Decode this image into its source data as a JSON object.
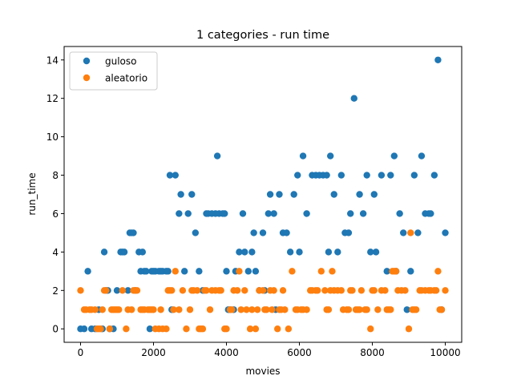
{
  "chart_data": {
    "type": "scatter",
    "title": "1 categories - run time",
    "xlabel": "movies",
    "ylabel": "run_time",
    "xlim": [
      -450,
      10450
    ],
    "ylim": [
      -0.7,
      14.7
    ],
    "xticks": [
      0,
      2000,
      4000,
      6000,
      8000,
      10000
    ],
    "yticks": [
      0,
      2,
      4,
      6,
      8,
      10,
      12,
      14
    ],
    "grid": false,
    "legend_position": "top-left",
    "series": [
      {
        "name": "guloso",
        "color": "#1f77b4",
        "points": [
          [
            0,
            0
          ],
          [
            100,
            0
          ],
          [
            200,
            3
          ],
          [
            300,
            0
          ],
          [
            400,
            0
          ],
          [
            500,
            1
          ],
          [
            600,
            0
          ],
          [
            650,
            4
          ],
          [
            700,
            2
          ],
          [
            750,
            2
          ],
          [
            800,
            0
          ],
          [
            900,
            0
          ],
          [
            1000,
            2
          ],
          [
            1100,
            4
          ],
          [
            1150,
            4
          ],
          [
            1200,
            4
          ],
          [
            1300,
            2
          ],
          [
            1350,
            5
          ],
          [
            1400,
            5
          ],
          [
            1450,
            5
          ],
          [
            1500,
            2
          ],
          [
            1600,
            4
          ],
          [
            1650,
            3
          ],
          [
            1700,
            4
          ],
          [
            1750,
            3
          ],
          [
            1800,
            3
          ],
          [
            1900,
            0
          ],
          [
            1950,
            3
          ],
          [
            2000,
            3
          ],
          [
            2050,
            3
          ],
          [
            2150,
            3
          ],
          [
            2200,
            3
          ],
          [
            2250,
            3
          ],
          [
            2350,
            3
          ],
          [
            2400,
            3
          ],
          [
            2450,
            8
          ],
          [
            2500,
            1
          ],
          [
            2600,
            8
          ],
          [
            2700,
            6
          ],
          [
            2750,
            7
          ],
          [
            2850,
            3
          ],
          [
            2950,
            6
          ],
          [
            3050,
            7
          ],
          [
            3150,
            5
          ],
          [
            3250,
            3
          ],
          [
            3350,
            2
          ],
          [
            3450,
            6
          ],
          [
            3500,
            6
          ],
          [
            3600,
            6
          ],
          [
            3700,
            6
          ],
          [
            3750,
            9
          ],
          [
            3800,
            6
          ],
          [
            3900,
            6
          ],
          [
            3950,
            6
          ],
          [
            4000,
            3
          ],
          [
            4050,
            1
          ],
          [
            4100,
            1
          ],
          [
            4200,
            1
          ],
          [
            4250,
            3
          ],
          [
            4350,
            4
          ],
          [
            4450,
            6
          ],
          [
            4500,
            4
          ],
          [
            4600,
            3
          ],
          [
            4700,
            4
          ],
          [
            4750,
            5
          ],
          [
            4800,
            3
          ],
          [
            4900,
            2
          ],
          [
            5000,
            5
          ],
          [
            5050,
            2
          ],
          [
            5150,
            6
          ],
          [
            5200,
            7
          ],
          [
            5300,
            6
          ],
          [
            5350,
            1
          ],
          [
            5450,
            7
          ],
          [
            5550,
            5
          ],
          [
            5650,
            5
          ],
          [
            5750,
            4
          ],
          [
            5850,
            7
          ],
          [
            5950,
            8
          ],
          [
            6000,
            4
          ],
          [
            6100,
            9
          ],
          [
            6200,
            6
          ],
          [
            6350,
            8
          ],
          [
            6450,
            8
          ],
          [
            6550,
            8
          ],
          [
            6650,
            8
          ],
          [
            6750,
            8
          ],
          [
            6800,
            4
          ],
          [
            6850,
            9
          ],
          [
            6950,
            7
          ],
          [
            7050,
            4
          ],
          [
            7150,
            8
          ],
          [
            7250,
            5
          ],
          [
            7350,
            5
          ],
          [
            7400,
            6
          ],
          [
            7500,
            12
          ],
          [
            7650,
            7
          ],
          [
            7750,
            6
          ],
          [
            7850,
            8
          ],
          [
            7950,
            4
          ],
          [
            8050,
            7
          ],
          [
            8100,
            4
          ],
          [
            8250,
            8
          ],
          [
            8400,
            3
          ],
          [
            8500,
            8
          ],
          [
            8600,
            9
          ],
          [
            8650,
            3
          ],
          [
            8750,
            6
          ],
          [
            8850,
            5
          ],
          [
            8950,
            1
          ],
          [
            9050,
            3
          ],
          [
            9150,
            8
          ],
          [
            9250,
            5
          ],
          [
            9350,
            9
          ],
          [
            9450,
            6
          ],
          [
            9550,
            6
          ],
          [
            9600,
            6
          ],
          [
            9700,
            8
          ],
          [
            9800,
            14
          ],
          [
            9900,
            1
          ],
          [
            10000,
            5
          ]
        ]
      },
      {
        "name": "aleatorio",
        "color": "#ff7f0e",
        "points": [
          [
            0,
            2
          ],
          [
            100,
            1
          ],
          [
            150,
            1
          ],
          [
            250,
            1
          ],
          [
            300,
            1
          ],
          [
            400,
            1
          ],
          [
            450,
            0
          ],
          [
            500,
            0
          ],
          [
            550,
            0
          ],
          [
            600,
            1
          ],
          [
            650,
            2
          ],
          [
            700,
            2
          ],
          [
            800,
            0
          ],
          [
            850,
            1
          ],
          [
            900,
            1
          ],
          [
            950,
            1
          ],
          [
            1000,
            1
          ],
          [
            1050,
            1
          ],
          [
            1150,
            2
          ],
          [
            1250,
            0
          ],
          [
            1300,
            1
          ],
          [
            1400,
            1
          ],
          [
            1450,
            2
          ],
          [
            1500,
            2
          ],
          [
            1550,
            2
          ],
          [
            1650,
            1
          ],
          [
            1700,
            1
          ],
          [
            1750,
            1
          ],
          [
            1850,
            1
          ],
          [
            1900,
            1
          ],
          [
            1950,
            1
          ],
          [
            2000,
            1
          ],
          [
            2050,
            0
          ],
          [
            2150,
            0
          ],
          [
            2200,
            1
          ],
          [
            2250,
            0
          ],
          [
            2350,
            0
          ],
          [
            2400,
            2
          ],
          [
            2450,
            2
          ],
          [
            2500,
            2
          ],
          [
            2550,
            1
          ],
          [
            2600,
            3
          ],
          [
            2700,
            1
          ],
          [
            2800,
            2
          ],
          [
            2900,
            0
          ],
          [
            3000,
            1
          ],
          [
            3050,
            2
          ],
          [
            3100,
            2
          ],
          [
            3200,
            2
          ],
          [
            3250,
            0
          ],
          [
            3300,
            0
          ],
          [
            3350,
            0
          ],
          [
            3400,
            2
          ],
          [
            3450,
            2
          ],
          [
            3550,
            1
          ],
          [
            3600,
            2
          ],
          [
            3700,
            2
          ],
          [
            3800,
            2
          ],
          [
            3850,
            2
          ],
          [
            3950,
            0
          ],
          [
            4000,
            0
          ],
          [
            4100,
            1
          ],
          [
            4150,
            1
          ],
          [
            4200,
            2
          ],
          [
            4300,
            2
          ],
          [
            4350,
            3
          ],
          [
            4400,
            1
          ],
          [
            4500,
            2
          ],
          [
            4550,
            1
          ],
          [
            4650,
            0
          ],
          [
            4700,
            1
          ],
          [
            4800,
            0
          ],
          [
            4850,
            1
          ],
          [
            4900,
            2
          ],
          [
            5000,
            2
          ],
          [
            5050,
            1
          ],
          [
            5100,
            1
          ],
          [
            5200,
            2
          ],
          [
            5250,
            1
          ],
          [
            5300,
            2
          ],
          [
            5400,
            0
          ],
          [
            5450,
            1
          ],
          [
            5500,
            1
          ],
          [
            5550,
            2
          ],
          [
            5600,
            1
          ],
          [
            5700,
            0
          ],
          [
            5800,
            3
          ],
          [
            5900,
            1
          ],
          [
            5950,
            1
          ],
          [
            6050,
            1
          ],
          [
            6100,
            1
          ],
          [
            6200,
            1
          ],
          [
            6300,
            2
          ],
          [
            6350,
            2
          ],
          [
            6450,
            2
          ],
          [
            6500,
            2
          ],
          [
            6600,
            3
          ],
          [
            6700,
            2
          ],
          [
            6750,
            1
          ],
          [
            6800,
            1
          ],
          [
            6850,
            2
          ],
          [
            6900,
            3
          ],
          [
            6950,
            2
          ],
          [
            7050,
            2
          ],
          [
            7150,
            2
          ],
          [
            7200,
            1
          ],
          [
            7300,
            1
          ],
          [
            7350,
            1
          ],
          [
            7400,
            2
          ],
          [
            7450,
            2
          ],
          [
            7550,
            1
          ],
          [
            7600,
            1
          ],
          [
            7650,
            1
          ],
          [
            7700,
            2
          ],
          [
            7800,
            1
          ],
          [
            7850,
            1
          ],
          [
            7950,
            0
          ],
          [
            8000,
            2
          ],
          [
            8050,
            2
          ],
          [
            8150,
            1
          ],
          [
            8250,
            2
          ],
          [
            8350,
            2
          ],
          [
            8400,
            1
          ],
          [
            8450,
            1
          ],
          [
            8500,
            1
          ],
          [
            8550,
            3
          ],
          [
            8600,
            3
          ],
          [
            8650,
            3
          ],
          [
            8700,
            2
          ],
          [
            8800,
            2
          ],
          [
            8900,
            2
          ],
          [
            9000,
            0
          ],
          [
            9050,
            5
          ],
          [
            9100,
            1
          ],
          [
            9150,
            1
          ],
          [
            9200,
            1
          ],
          [
            9300,
            2
          ],
          [
            9350,
            2
          ],
          [
            9450,
            2
          ],
          [
            9550,
            2
          ],
          [
            9600,
            2
          ],
          [
            9700,
            2
          ],
          [
            9750,
            2
          ],
          [
            9800,
            3
          ],
          [
            9850,
            1
          ],
          [
            9900,
            1
          ],
          [
            10000,
            2
          ]
        ]
      }
    ]
  }
}
